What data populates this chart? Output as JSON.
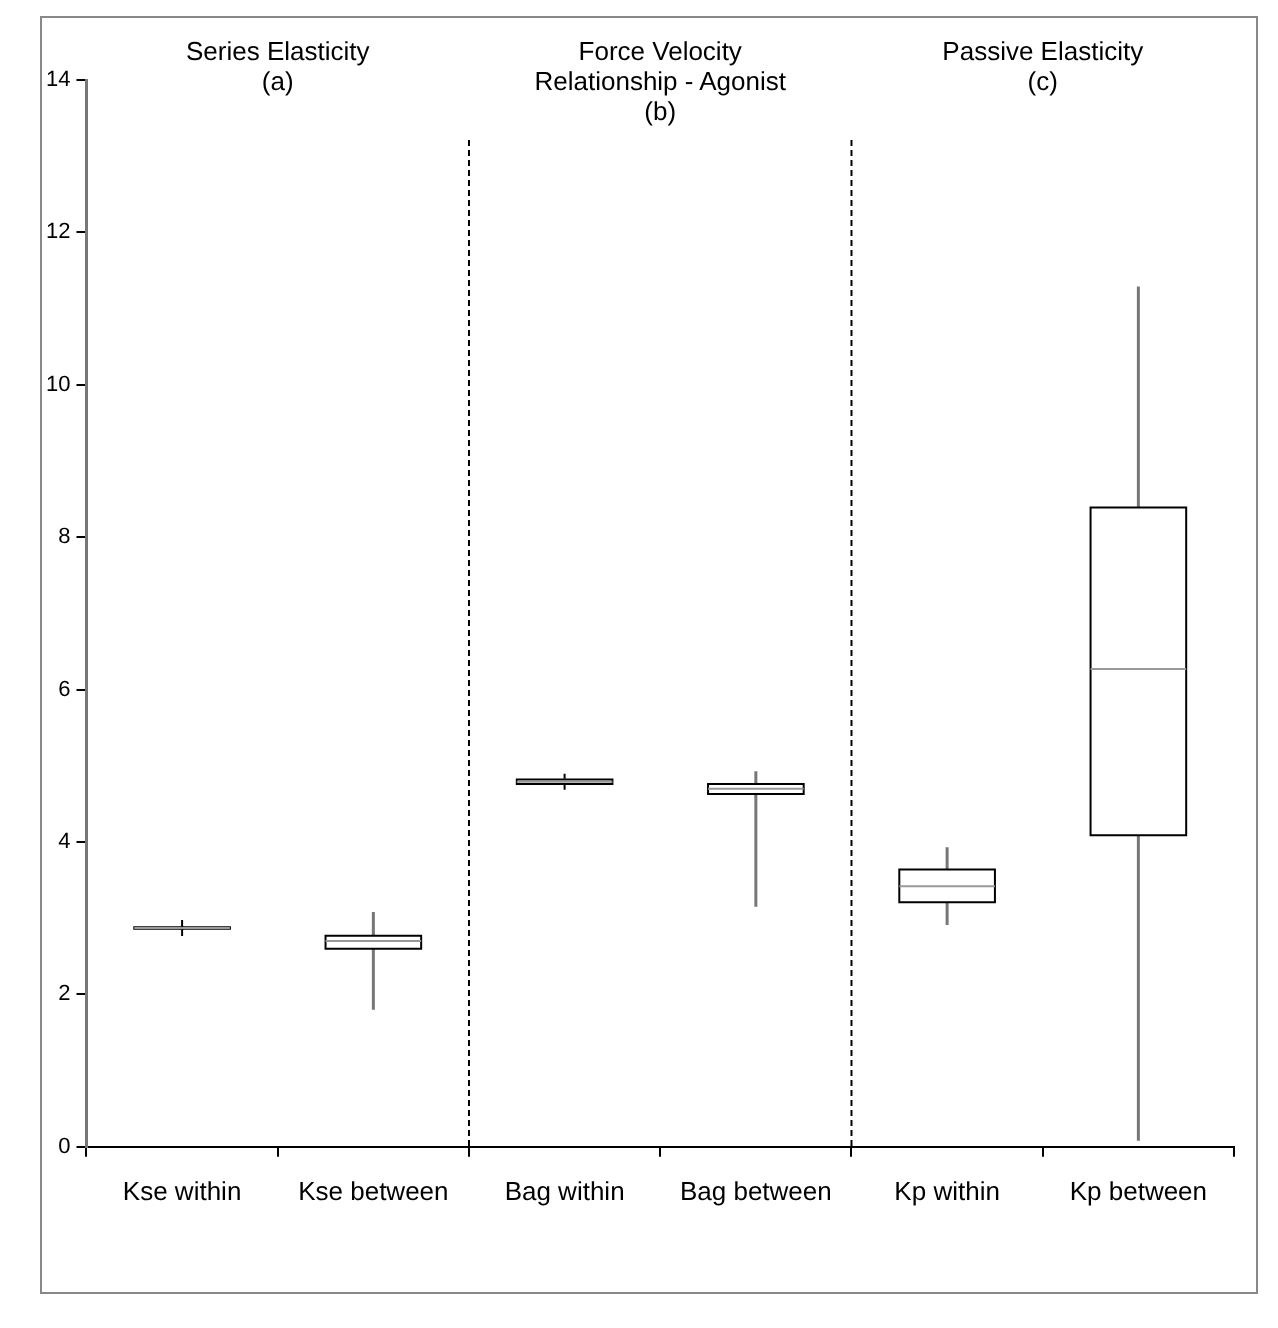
{
  "chart_data": {
    "type": "box",
    "categories": [
      "Kse within",
      "Kse between",
      "Bag within",
      "Bag between",
      "Kp within",
      "Kp between"
    ],
    "boxes": [
      {
        "low": 2.85,
        "q1": 2.86,
        "median": 2.87,
        "q3": 2.88,
        "high": 2.89,
        "mean": 2.87
      },
      {
        "low": 1.8,
        "q1": 2.6,
        "median": 2.7,
        "q3": 2.77,
        "high": 3.08,
        "mean": 2.69
      },
      {
        "low": 4.76,
        "q1": 4.76,
        "median": 4.79,
        "q3": 4.82,
        "high": 4.84,
        "mean": 4.79
      },
      {
        "low": 3.15,
        "q1": 4.63,
        "median": 4.7,
        "q3": 4.76,
        "high": 4.93,
        "mean": 4.69
      },
      {
        "low": 2.91,
        "q1": 3.21,
        "median": 3.42,
        "q3": 3.64,
        "high": 3.93,
        "mean": 3.42
      },
      {
        "low": 0.08,
        "q1": 4.09,
        "median": 6.27,
        "q3": 8.39,
        "high": 11.29,
        "mean": 6.27
      }
    ],
    "ylim": [
      0,
      14
    ],
    "yticks": [
      0,
      2,
      4,
      6,
      8,
      10,
      12,
      14
    ],
    "grid": false,
    "legend": false,
    "marker": "cross",
    "annotations": [
      "Series Elasticity\n(a)",
      "Force Velocity\nRelationship - Agonist\n(b)",
      "Passive Elasticity\n(c)"
    ]
  }
}
